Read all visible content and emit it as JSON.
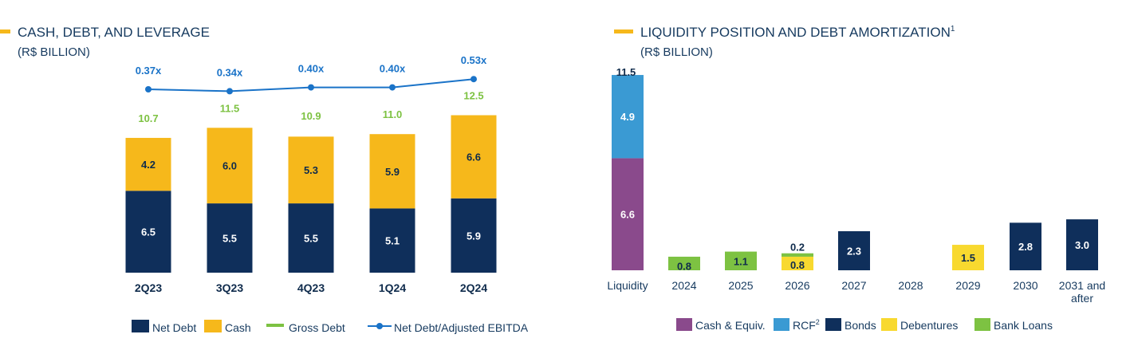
{
  "colors": {
    "net_debt": "#0f2f5b",
    "cash": "#f6b81b",
    "gross_debt": "#7dc242",
    "ratio_line": "#1a73c8",
    "cash_equiv": "#8a4a8c",
    "rcf": "#3a9ad3",
    "bonds": "#0f2f5b",
    "debentures": "#f8d92f",
    "bank_loans": "#7dc242",
    "title_text": "#163a5f"
  },
  "chart_data": [
    {
      "type": "bar",
      "title": "CASH, DEBT, AND LEVERAGE",
      "subtitle": "(R$ BILLION)",
      "categories": [
        "2Q23",
        "3Q23",
        "4Q23",
        "1Q24",
        "2Q24"
      ],
      "series": [
        {
          "name": "Net Debt",
          "values": [
            6.5,
            5.5,
            5.5,
            5.1,
            5.9
          ]
        },
        {
          "name": "Cash",
          "values": [
            4.2,
            6.0,
            5.3,
            5.9,
            6.6
          ]
        },
        {
          "name": "Gross Debt",
          "values": [
            10.7,
            11.5,
            10.9,
            11.0,
            12.5
          ]
        },
        {
          "name": "Net Debt/Adjusted EBITDA",
          "values": [
            0.37,
            0.34,
            0.4,
            0.4,
            0.53
          ],
          "labels": [
            "0.37x",
            "0.34x",
            "0.40x",
            "0.40x",
            "0.53x"
          ]
        }
      ],
      "legend": [
        "Net Debt",
        "Cash",
        "Gross Debt",
        "Net Debt/Adjusted EBITDA"
      ]
    },
    {
      "type": "bar",
      "title": "LIQUIDITY POSITION AND DEBT AMORTIZATION",
      "title_superscript": "1",
      "subtitle": "(R$ BILLION)",
      "categories": [
        "Liquidity",
        "2024",
        "2025",
        "2026",
        "2027",
        "2028",
        "2029",
        "2030",
        "2031 and after"
      ],
      "total_labels": {
        "Liquidity": "11.5"
      },
      "segments": [
        {
          "category": "Liquidity",
          "series": "Cash & Equiv.",
          "value": 6.6
        },
        {
          "category": "Liquidity",
          "series": "RCF",
          "value": 4.9
        },
        {
          "category": "2024",
          "series": "Bank Loans",
          "value": 0.8
        },
        {
          "category": "2025",
          "series": "Bank Loans",
          "value": 1.1
        },
        {
          "category": "2026",
          "series": "Debentures",
          "value": 0.8
        },
        {
          "category": "2026",
          "series": "Bank Loans",
          "value": 0.2
        },
        {
          "category": "2027",
          "series": "Bonds",
          "value": 2.3
        },
        {
          "category": "2029",
          "series": "Debentures",
          "value": 1.5
        },
        {
          "category": "2030",
          "series": "Bonds",
          "value": 2.8
        },
        {
          "category": "2031 and after",
          "series": "Bonds",
          "value": 3.0
        }
      ],
      "legend": [
        {
          "name": "Cash & Equiv.",
          "sup": ""
        },
        {
          "name": "RCF",
          "sup": "2"
        },
        {
          "name": "Bonds",
          "sup": ""
        },
        {
          "name": "Debentures",
          "sup": ""
        },
        {
          "name": "Bank Loans",
          "sup": ""
        }
      ]
    }
  ]
}
